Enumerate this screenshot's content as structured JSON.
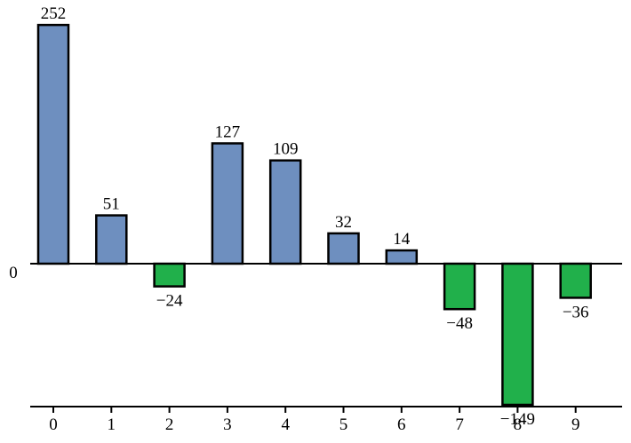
{
  "chart_data": {
    "type": "bar",
    "categories": [
      "0",
      "1",
      "2",
      "3",
      "4",
      "5",
      "6",
      "7",
      "8",
      "9"
    ],
    "values": [
      252,
      51,
      -24,
      127,
      109,
      32,
      14,
      -48,
      -149,
      -36
    ],
    "value_labels": [
      "252",
      "51",
      "−24",
      "127",
      "109",
      "32",
      "14",
      "−48",
      "−149",
      "−36"
    ],
    "zero_label": "0",
    "title": "",
    "xlabel": "",
    "ylabel": "",
    "colors": {
      "positive": "#6e8fbf",
      "negative": "#21b04b",
      "outline": "#000000"
    },
    "grid": false,
    "legend": "none"
  }
}
